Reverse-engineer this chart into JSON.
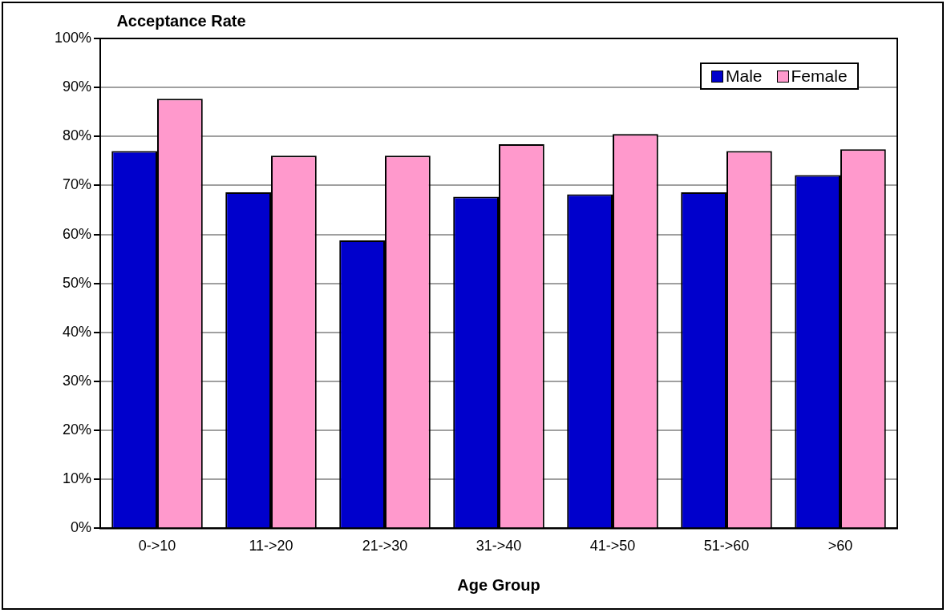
{
  "chart_data": {
    "type": "bar",
    "ylabel": "Acceptance Rate",
    "xlabel": "Age Group",
    "categories": [
      "0->10",
      "11->20",
      "21->30",
      "31->40",
      "41->50",
      "51->60",
      ">60"
    ],
    "series": [
      {
        "name": "Male",
        "color": "#0000cc",
        "values": [
          77.0,
          68.6,
          58.8,
          67.7,
          68.2,
          68.6,
          72.1
        ]
      },
      {
        "name": "Female",
        "color": "#ff99cc",
        "values": [
          87.7,
          76.1,
          76.1,
          78.4,
          80.5,
          77.0,
          77.4
        ]
      }
    ],
    "ylim": [
      0,
      100
    ],
    "yticks": [
      {
        "value": 0,
        "label": "0%"
      },
      {
        "value": 10,
        "label": "10%"
      },
      {
        "value": 20,
        "label": "20%"
      },
      {
        "value": 30,
        "label": "30%"
      },
      {
        "value": 40,
        "label": "40%"
      },
      {
        "value": 50,
        "label": "50%"
      },
      {
        "value": 60,
        "label": "60%"
      },
      {
        "value": 70,
        "label": "70%"
      },
      {
        "value": 80,
        "label": "80%"
      },
      {
        "value": 90,
        "label": "90%"
      },
      {
        "value": 100,
        "label": "100%"
      }
    ],
    "grid": "y",
    "legend": "top right"
  }
}
